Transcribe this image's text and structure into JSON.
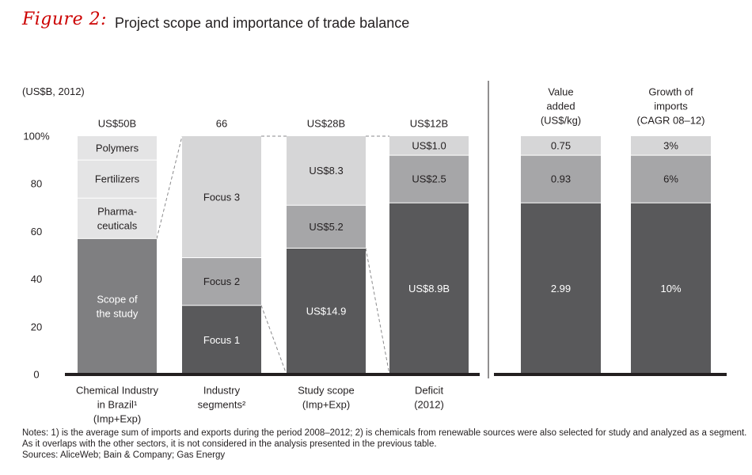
{
  "figure": {
    "label": "Figure 2:",
    "title": "Project scope and importance of trade balance",
    "unit": "(US$B, 2012)"
  },
  "notes": {
    "line1": "Notes: 1) is the average sum of imports and exports during the period 2008–2012; 2) is chemicals from renewable sources were also selected for study and analyzed as a segment.",
    "line2": "As it overlaps with the other sectors, it is not considered in the analysis presented in the previous table.",
    "sources": "Sources: AliceWeb; Bain & Company; Gas Energy"
  },
  "colors": {
    "dark": "#59595b",
    "scope": "#7f7f81",
    "mid": "#a6a6a8",
    "light": "#d6d6d7",
    "lighter": "#e4e4e5"
  },
  "chart_data": [
    {
      "type": "bar",
      "stacked": true,
      "ylim": [
        0,
        100
      ],
      "yticks": [
        "0",
        "20",
        "40",
        "60",
        "80",
        "100%"
      ],
      "bars": [
        {
          "category": [
            "Chemical Industry",
            "in Brazil¹",
            "(Imp+Exp)"
          ],
          "total": "US$50B",
          "segments": [
            {
              "from": 0,
              "to": 57,
              "label": [
                "Scope of",
                "the study"
              ],
              "color": "scope"
            },
            {
              "from": 57,
              "to": 74,
              "label": [
                "Pharma-",
                "ceuticals"
              ],
              "color": "lighter"
            },
            {
              "from": 74,
              "to": 90,
              "label": [
                "Fertilizers"
              ],
              "color": "lighter"
            },
            {
              "from": 90,
              "to": 100,
              "label": [
                "Polymers"
              ],
              "color": "lighter"
            }
          ]
        },
        {
          "category": [
            "Industry",
            "segments²"
          ],
          "total": "66",
          "segments": [
            {
              "from": 0,
              "to": 29,
              "label": [
                "Focus 1"
              ],
              "color": "dark"
            },
            {
              "from": 29,
              "to": 49,
              "label": [
                "Focus 2"
              ],
              "color": "mid"
            },
            {
              "from": 49,
              "to": 100,
              "label": [
                "Focus 3"
              ],
              "color": "light"
            }
          ]
        },
        {
          "category": [
            "Study scope",
            "(Imp+Exp)"
          ],
          "total": "US$28B",
          "segments": [
            {
              "from": 0,
              "to": 53,
              "label": [
                "US$14.9"
              ],
              "color": "dark"
            },
            {
              "from": 53,
              "to": 71,
              "label": [
                "US$5.2"
              ],
              "color": "mid"
            },
            {
              "from": 71,
              "to": 100,
              "label": [
                "US$8.3"
              ],
              "color": "light"
            }
          ]
        },
        {
          "category": [
            "Deficit",
            "(2012)"
          ],
          "total": "US$12B",
          "segments": [
            {
              "from": 0,
              "to": 72,
              "label": [
                "US$8.9B"
              ],
              "color": "dark"
            },
            {
              "from": 72,
              "to": 92,
              "label": [
                "US$2.5"
              ],
              "color": "mid"
            },
            {
              "from": 92,
              "to": 100,
              "label": [
                "US$1.0"
              ],
              "color": "light"
            }
          ]
        }
      ]
    },
    {
      "type": "bar",
      "stacked": true,
      "ylim": [
        0,
        100
      ],
      "bars": [
        {
          "header": [
            "Value",
            "added",
            "(US$/kg)"
          ],
          "segments": [
            {
              "from": 0,
              "to": 72,
              "label": [
                "2.99"
              ],
              "color": "dark"
            },
            {
              "from": 72,
              "to": 92,
              "label": [
                "0.93"
              ],
              "color": "mid"
            },
            {
              "from": 92,
              "to": 100,
              "label": [
                "0.75"
              ],
              "color": "light"
            }
          ]
        },
        {
          "header": [
            "Growth of",
            "imports",
            "(CAGR 08–12)"
          ],
          "segments": [
            {
              "from": 0,
              "to": 72,
              "label": [
                "10%"
              ],
              "color": "dark"
            },
            {
              "from": 72,
              "to": 92,
              "label": [
                "6%"
              ],
              "color": "mid"
            },
            {
              "from": 92,
              "to": 100,
              "label": [
                "3%"
              ],
              "color": "light"
            }
          ]
        }
      ]
    }
  ]
}
